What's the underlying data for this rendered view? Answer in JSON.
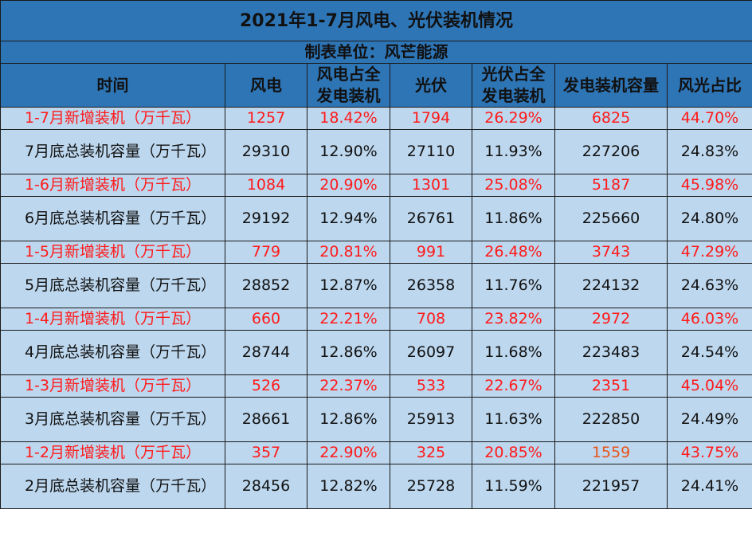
{
  "chart_data": {
    "type": "table",
    "title": "2021年1-7月风电、光伏装机情况",
    "subtitle": "制表单位：风芒能源",
    "columns": [
      "时间",
      "风电",
      "风电占全发电装机",
      "光伏",
      "光伏占全发电装机",
      "发电装机容量",
      "风光占比"
    ],
    "rows": [
      {
        "kind": "new",
        "cells": [
          "1-7月新增装机（万千瓦）",
          "1257",
          "18.42%",
          "1794",
          "26.29%",
          "6825",
          "44.70%"
        ]
      },
      {
        "kind": "total",
        "cells": [
          "7月底总装机容量（万千瓦）",
          "29310",
          "12.90%",
          "27110",
          "11.93%",
          "227206",
          "24.83%"
        ]
      },
      {
        "kind": "new",
        "cells": [
          "1-6月新增装机（万千瓦）",
          "1084",
          "20.90%",
          "1301",
          "25.08%",
          "5187",
          "45.98%"
        ]
      },
      {
        "kind": "total",
        "cells": [
          "6月底总装机容量（万千瓦）",
          "29192",
          "12.94%",
          "26761",
          "11.86%",
          "225660",
          "24.80%"
        ]
      },
      {
        "kind": "new",
        "cells": [
          "1-5月新增装机（万千瓦）",
          "779",
          "20.81%",
          "991",
          "26.48%",
          "3743",
          "47.29%"
        ]
      },
      {
        "kind": "total",
        "cells": [
          "5月底总装机容量（万千瓦）",
          "28852",
          "12.87%",
          "26358",
          "11.76%",
          "224132",
          "24.63%"
        ]
      },
      {
        "kind": "new",
        "cells": [
          "1-4月新增装机（万千瓦）",
          "660",
          "22.21%",
          "708",
          "23.82%",
          "2972",
          "46.03%"
        ]
      },
      {
        "kind": "total",
        "cells": [
          "4月底总装机容量（万千瓦）",
          "28744",
          "12.86%",
          "26097",
          "11.68%",
          "223483",
          "24.54%"
        ]
      },
      {
        "kind": "new",
        "cells": [
          "1-3月新增装机（万千瓦）",
          "526",
          "22.37%",
          "533",
          "22.67%",
          "2351",
          "45.04%"
        ]
      },
      {
        "kind": "total",
        "cells": [
          "3月底总装机容量（万千瓦）",
          "28661",
          "12.86%",
          "25913",
          "11.63%",
          "222850",
          "24.49%"
        ]
      },
      {
        "kind": "new",
        "cells": [
          "1-2月新增装机（万千瓦）",
          "357",
          "22.90%",
          "325",
          "20.85%",
          "1559",
          "43.75%"
        ]
      },
      {
        "kind": "total",
        "cells": [
          "2月底总装机容量（万千瓦）",
          "28456",
          "12.82%",
          "25728",
          "11.59%",
          "221957",
          "24.41%"
        ]
      }
    ]
  },
  "colors": {
    "header_bg": "#2e75b6",
    "body_bg": "#bdd7ee",
    "new_text": "#ff1a1a",
    "total_text": "#111111"
  }
}
